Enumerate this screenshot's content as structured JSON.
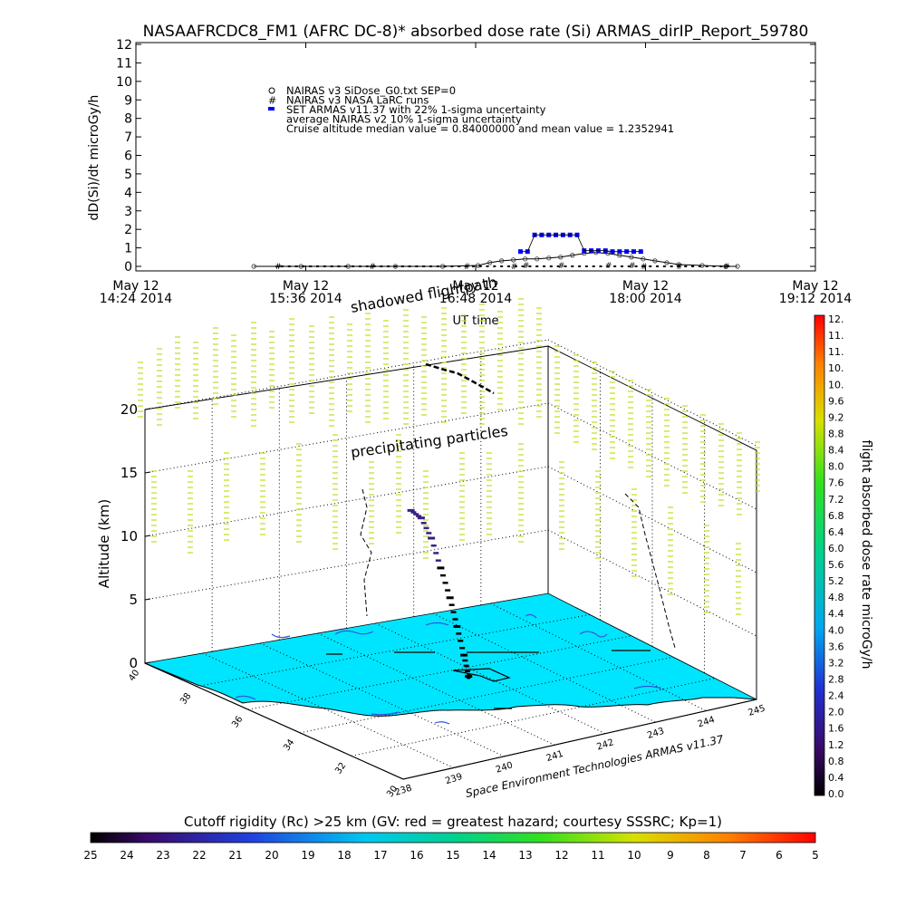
{
  "page": {
    "title": "NASAAFRCDC8_FM1 (AFRC DC-8)* absorbed dose rate (Si) ARMAS_dirIP_Report_59780"
  },
  "chart_data": [
    {
      "type": "line",
      "title": "NASAAFRCDC8_FM1 (AFRC DC-8)* absorbed dose rate (Si) ARMAS_dirIP_Report_59780",
      "xlabel": "UT time",
      "ylabel": "dD(Si)/dt microGy/h",
      "ylim": [
        0,
        12
      ],
      "yticks": [
        "0",
        "1",
        "2",
        "3",
        "4",
        "5",
        "6",
        "7",
        "8",
        "9",
        "10",
        "11",
        "12"
      ],
      "xticks": [
        {
          "line1": "May 12",
          "line2": "14:24 2014"
        },
        {
          "line1": "May 12",
          "line2": "15:36 2014"
        },
        {
          "line1": "May 12",
          "line2": "16:48 2014"
        },
        {
          "line1": "May 12",
          "line2": "18:00 2014"
        },
        {
          "line1": "May 12",
          "line2": "19:12 2014"
        }
      ],
      "legend_position": "top-left inside plot",
      "legend": [
        {
          "marker": "diamond",
          "text": "NAIRAS v3 SiDose_G0.txt SEP=0"
        },
        {
          "marker": "hash",
          "text": "NAIRAS v3 NASA LaRC runs"
        },
        {
          "marker": "blue-dot",
          "text": "SET ARMAS v11.37 with 22% 1-sigma uncertainty"
        },
        {
          "marker": "none",
          "text": "average NAIRAS v2 10% 1-sigma uncertainty"
        },
        {
          "marker": "none",
          "text": "Cruise altitude median value = 0.84000000 and mean value = 1.2352941"
        }
      ],
      "x_units": "minutes after 14:24 UT",
      "series": [
        {
          "name": "SET ARMAS v11.37 with 22% 1-sigma uncertainty",
          "color": "#0000ff",
          "x": [
            163,
            166,
            169,
            172,
            175,
            178,
            181,
            184,
            187,
            190,
            193,
            196,
            199,
            202,
            205,
            208,
            211,
            214
          ],
          "values": [
            0.8,
            0.8,
            1.7,
            1.7,
            1.7,
            1.7,
            1.7,
            1.7,
            1.7,
            0.85,
            0.85,
            0.85,
            0.85,
            0.8,
            0.8,
            0.8,
            0.8,
            0.8
          ]
        },
        {
          "name": "NAIRAS v3 SiDose_G0.txt SEP=0",
          "color": "#000000",
          "x": [
            50,
            70,
            90,
            110,
            130,
            145,
            150,
            155,
            160,
            165,
            170,
            175,
            180,
            185,
            190,
            195,
            200,
            205,
            210,
            215,
            220,
            225,
            230,
            240,
            250,
            255
          ],
          "values": [
            0,
            0,
            0,
            0,
            0,
            0.05,
            0.2,
            0.3,
            0.35,
            0.4,
            0.4,
            0.45,
            0.5,
            0.6,
            0.7,
            0.75,
            0.7,
            0.6,
            0.5,
            0.4,
            0.3,
            0.2,
            0.1,
            0.05,
            0,
            0
          ]
        },
        {
          "name": "NAIRAS v3 NASA LaRC runs",
          "color": "#000000",
          "x": [
            60,
            100,
            140,
            160,
            165,
            180,
            200,
            210,
            215,
            230,
            250
          ],
          "values": [
            0,
            0,
            0,
            0,
            0.05,
            0.05,
            0.05,
            0.05,
            0,
            0,
            0
          ]
        }
      ]
    },
    {
      "type": "scatter",
      "title": "",
      "annotations": [
        "shadowed flightpath",
        "precipitating particles"
      ],
      "zlabel": "Altitude (km)",
      "zlim": [
        0,
        20
      ],
      "zticks": [
        "0",
        "5",
        "10",
        "15",
        "20"
      ],
      "lat_ticks": [
        "40",
        "38",
        "36",
        "34",
        "32"
      ],
      "lat_extra_tick": "30",
      "lon_ticks": [
        "238",
        "239",
        "240",
        "241",
        "242",
        "243",
        "244",
        "245"
      ],
      "credit": "Space Environment Technologies ARMAS v11.37",
      "track_units": {
        "lon": "degrees E",
        "lat": "degrees N",
        "alt": "km"
      },
      "flight_track": [
        {
          "lon": 241.6,
          "lat": 35.0,
          "alt": 0.5
        },
        {
          "lon": 241.6,
          "lat": 35.2,
          "alt": 2.0
        },
        {
          "lon": 241.6,
          "lat": 35.5,
          "alt": 4.0
        },
        {
          "lon": 241.6,
          "lat": 35.8,
          "alt": 6.0
        },
        {
          "lon": 241.6,
          "lat": 36.2,
          "alt": 8.0
        },
        {
          "lon": 241.6,
          "lat": 36.6,
          "alt": 10.0
        },
        {
          "lon": 241.5,
          "lat": 36.8,
          "alt": 11.5
        },
        {
          "lon": 241.4,
          "lat": 37.0,
          "alt": 12.0
        }
      ],
      "upper_track": [
        {
          "lon": 240.0,
          "lat": 37.4,
          "alt": 20.5
        },
        {
          "lon": 240.3,
          "lat": 37.4,
          "alt": 20.2
        },
        {
          "lon": 240.6,
          "lat": 37.4,
          "alt": 20.0
        },
        {
          "lon": 240.9,
          "lat": 37.4,
          "alt": 19.6
        }
      ],
      "colorbar": {
        "label": "flight absorbed dose rate microGy/h",
        "ticks": [
          "0.0",
          "0.4",
          "0.8",
          "1.2",
          "1.6",
          "2.0",
          "2.4",
          "2.8",
          "3.2",
          "3.6",
          "4.0",
          "4.4",
          "4.8",
          "5.2",
          "5.6",
          "6.0",
          "6.4",
          "6.8",
          "7.2",
          "7.6",
          "8.0",
          "8.4",
          "8.8",
          "9.2",
          "9.6",
          "10.",
          "10.",
          "11.",
          "11.",
          "12."
        ]
      },
      "rigidity_bar": {
        "label": "Cutoff rigidity (Rc) >25 km (GV: red = greatest hazard; courtesy SSSRC; Kp=1)",
        "ticks": [
          "25",
          "24",
          "23",
          "22",
          "21",
          "20",
          "19",
          "18",
          "17",
          "16",
          "15",
          "14",
          "13",
          "12",
          "11",
          "10",
          "9",
          "8",
          "7",
          "6",
          "5"
        ]
      },
      "colors": {
        "ground": "#00e5ff",
        "precipitation_marks": "#b8e21a",
        "ground_contours": "#3355dd",
        "track_low": "#000000",
        "track_high": "#3a1d8a"
      }
    }
  ]
}
